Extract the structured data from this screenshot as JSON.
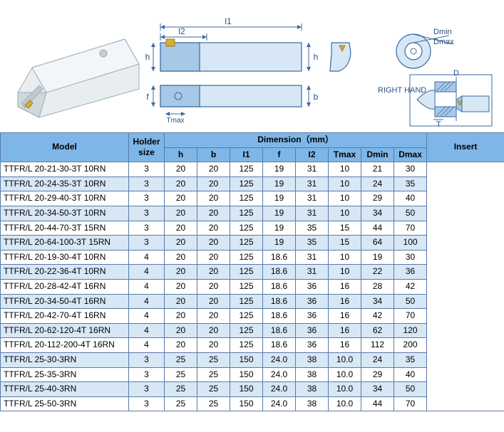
{
  "diagram": {
    "labels": {
      "l1": "l1",
      "l2": "l2",
      "h_left": "h",
      "h_right": "h",
      "f": "f",
      "Tmax": "Tmax",
      "b": "b",
      "Dmin": "Dmin",
      "Dmax": "Dmax",
      "D": "D",
      "T": "T",
      "right_hand": "RIGHT HAND"
    },
    "colors": {
      "line": "#3a6aa0",
      "fill_light": "#d7e7f5",
      "fill_med": "#a8c8e8",
      "fill_dark": "#6a93c0",
      "text": "#2a5080",
      "tool_body": "#e8eef0",
      "tool_shadow": "#c8d0d4",
      "insert": "#d4b030"
    }
  },
  "table": {
    "headers": {
      "model": "Model",
      "holder_size": "Holder size",
      "dimension": "Dimension（mm）",
      "insert": "Insert",
      "h": "h",
      "b": "b",
      "l1": "I1",
      "f": "f",
      "l2": "I2",
      "Tmax": "Tmax",
      "Dmin": "Dmin",
      "Dmax": "Dmax"
    },
    "rows": [
      {
        "model": "TTFR/L 20-21-30-3T 10RN",
        "holder": "3",
        "h": "20",
        "b": "20",
        "l1": "125",
        "f": "19",
        "l2": "31",
        "Tmax": "10",
        "Dmin": "21",
        "Dmax": "30"
      },
      {
        "model": "TTFR/L 20-24-35-3T 10RN",
        "holder": "3",
        "h": "20",
        "b": "20",
        "l1": "125",
        "f": "19",
        "l2": "31",
        "Tmax": "10",
        "Dmin": "24",
        "Dmax": "35"
      },
      {
        "model": "TTFR/L 20-29-40-3T 10RN",
        "holder": "3",
        "h": "20",
        "b": "20",
        "l1": "125",
        "f": "19",
        "l2": "31",
        "Tmax": "10",
        "Dmin": "29",
        "Dmax": "40"
      },
      {
        "model": "TTFR/L 20-34-50-3T 10RN",
        "holder": "3",
        "h": "20",
        "b": "20",
        "l1": "125",
        "f": "19",
        "l2": "31",
        "Tmax": "10",
        "Dmin": "34",
        "Dmax": "50"
      },
      {
        "model": "TTFR/L 20-44-70-3T 15RN",
        "holder": "3",
        "h": "20",
        "b": "20",
        "l1": "125",
        "f": "19",
        "l2": "35",
        "Tmax": "15",
        "Dmin": "44",
        "Dmax": "70"
      },
      {
        "model": "TTFR/L 20-64-100-3T 15RN",
        "holder": "3",
        "h": "20",
        "b": "20",
        "l1": "125",
        "f": "19",
        "l2": "35",
        "Tmax": "15",
        "Dmin": "64",
        "Dmax": "100"
      },
      {
        "model": "TTFR/L 20-19-30-4T 10RN",
        "holder": "4",
        "h": "20",
        "b": "20",
        "l1": "125",
        "f": "18.6",
        "l2": "31",
        "Tmax": "10",
        "Dmin": "19",
        "Dmax": "30"
      },
      {
        "model": "TTFR/L 20-22-36-4T 10RN",
        "holder": "4",
        "h": "20",
        "b": "20",
        "l1": "125",
        "f": "18.6",
        "l2": "31",
        "Tmax": "10",
        "Dmin": "22",
        "Dmax": "36"
      },
      {
        "model": "TTFR/L 20-28-42-4T 16RN",
        "holder": "4",
        "h": "20",
        "b": "20",
        "l1": "125",
        "f": "18.6",
        "l2": "36",
        "Tmax": "16",
        "Dmin": "28",
        "Dmax": "42"
      },
      {
        "model": "TTFR/L 20-34-50-4T 16RN",
        "holder": "4",
        "h": "20",
        "b": "20",
        "l1": "125",
        "f": "18.6",
        "l2": "36",
        "Tmax": "16",
        "Dmin": "34",
        "Dmax": "50"
      },
      {
        "model": "TTFR/L 20-42-70-4T 16RN",
        "holder": "4",
        "h": "20",
        "b": "20",
        "l1": "125",
        "f": "18.6",
        "l2": "36",
        "Tmax": "16",
        "Dmin": "42",
        "Dmax": "70"
      },
      {
        "model": "TTFR/L 20-62-120-4T 16RN",
        "holder": "4",
        "h": "20",
        "b": "20",
        "l1": "125",
        "f": "18.6",
        "l2": "36",
        "Tmax": "16",
        "Dmin": "62",
        "Dmax": "120"
      },
      {
        "model": "TTFR/L 20-112-200-4T 16RN",
        "holder": "4",
        "h": "20",
        "b": "20",
        "l1": "125",
        "f": "18.6",
        "l2": "36",
        "Tmax": "16",
        "Dmin": "112",
        "Dmax": "200"
      },
      {
        "model": "TTFR/L 25-30-3RN",
        "holder": "3",
        "h": "25",
        "b": "25",
        "l1": "150",
        "f": "24.0",
        "l2": "38",
        "Tmax": "10.0",
        "Dmin": "24",
        "Dmax": "35"
      },
      {
        "model": "TTFR/L 25-35-3RN",
        "holder": "3",
        "h": "25",
        "b": "25",
        "l1": "150",
        "f": "24.0",
        "l2": "38",
        "Tmax": "10.0",
        "Dmin": "29",
        "Dmax": "40"
      },
      {
        "model": "TTFR/L 25-40-3RN",
        "holder": "3",
        "h": "25",
        "b": "25",
        "l1": "150",
        "f": "24.0",
        "l2": "38",
        "Tmax": "10.0",
        "Dmin": "34",
        "Dmax": "50"
      },
      {
        "model": "TTFR/L 25-50-3RN",
        "holder": "3",
        "h": "25",
        "b": "25",
        "l1": "150",
        "f": "24.0",
        "l2": "38",
        "Tmax": "10.0",
        "Dmin": "44",
        "Dmax": "70"
      }
    ]
  }
}
